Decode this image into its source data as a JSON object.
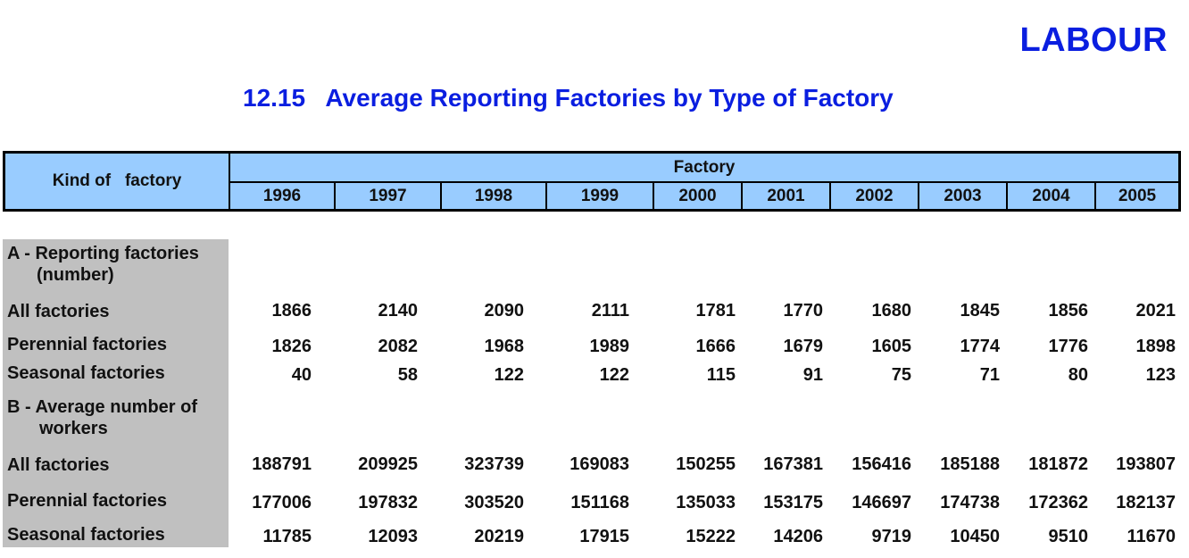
{
  "section_title": "LABOUR",
  "table_title": "12.15   Average Reporting Factories by Type of Factory",
  "header": {
    "kind_label": "Kind of   factory",
    "group_label": "Factory",
    "years": [
      "1996",
      "1997",
      "1998",
      "1999",
      "2000",
      "2001",
      "2002",
      "2003",
      "2004",
      "2005"
    ]
  },
  "sections": [
    {
      "heading_line1": "A - Reporting factories",
      "heading_line2": "(number)",
      "rows": [
        {
          "label": "All factories",
          "values": [
            "1866",
            "2140",
            "2090",
            "2111",
            "1781",
            "1770",
            "1680",
            "1845",
            "1856",
            "2021"
          ]
        },
        {
          "label": "Perennial factories",
          "values": [
            "1826",
            "2082",
            "1968",
            "1989",
            "1666",
            "1679",
            "1605",
            "1774",
            "1776",
            "1898"
          ]
        },
        {
          "label": "Seasonal factories",
          "values": [
            "40",
            "58",
            "122",
            "122",
            "115",
            "91",
            "75",
            "71",
            "80",
            "123"
          ]
        }
      ]
    },
    {
      "heading_line1": "B - Average number of",
      "heading_line2": "workers",
      "rows": [
        {
          "label": "All factories",
          "values": [
            "188791",
            "209925",
            "323739",
            "169083",
            "150255",
            "167381",
            "156416",
            "185188",
            "181872",
            "193807"
          ]
        },
        {
          "label": "Perennial factories",
          "values": [
            "177006",
            "197832",
            "303520",
            "151168",
            "135033",
            "153175",
            "146697",
            "174738",
            "172362",
            "182137"
          ]
        },
        {
          "label": "Seasonal factories",
          "values": [
            "11785",
            "12093",
            "20219",
            "17915",
            "15222",
            "14206",
            "9719",
            "10450",
            "9510",
            "11670"
          ]
        }
      ]
    }
  ],
  "colors": {
    "title_blue": "#0a1ee0",
    "header_fill": "#99ccff",
    "label_column_fill": "#c0c0c0"
  }
}
